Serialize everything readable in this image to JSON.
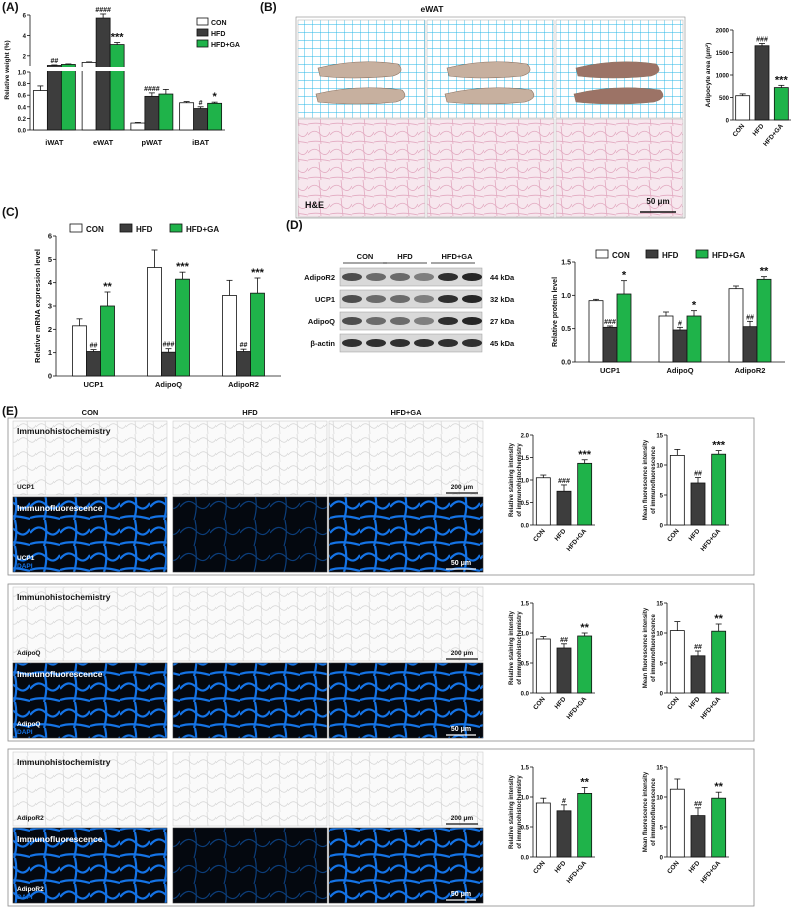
{
  "colors": {
    "con": "#ffffff",
    "hfd": "#3d3d3d",
    "ga": "#1fb34a",
    "grid": "#24b6e6",
    "he": "#f7e7ee",
    "ifbg": "#04080f",
    "ifblue": "#1473e6"
  },
  "panels": {
    "A": "(A)",
    "B": "(B)",
    "C": "(C)",
    "D": "(D)",
    "E": "(E)"
  },
  "groups": [
    "CON",
    "HFD",
    "HFD+GA"
  ],
  "legend": [
    "CON",
    "HFD",
    "HFD+GA"
  ],
  "eWAT_title": "eWAT",
  "he_label": "H&E",
  "scale_50": "50 μm",
  "scale_200": "200 μm",
  "ihc_label": "Immunohistochemistry",
  "if_label": "Immunofluorescence",
  "dapi": "DAPI",
  "markers": [
    "UCP1",
    "AdipoQ",
    "AdipoR2"
  ],
  "wb": {
    "groups": [
      "CON",
      "HFD",
      "HFD+GA"
    ],
    "bands": [
      {
        "name": "AdipoR2",
        "kda": "44 kDa"
      },
      {
        "name": "UCP1",
        "kda": "32 kDa"
      },
      {
        "name": "AdipoQ",
        "kda": "27 kDa"
      },
      {
        "name": "β-actin",
        "kda": "45 kDa"
      }
    ]
  },
  "chart_data": [
    {
      "id": "A",
      "type": "bar",
      "ylabel": "Relative weight (%)",
      "categories": [
        "iWAT",
        "eWAT",
        "pWAT",
        "iBAT"
      ],
      "yticks": [
        "0.0",
        "0.2",
        "0.4",
        "0.6",
        "0.8",
        "1.0",
        "2",
        "4",
        "6"
      ],
      "series": [
        {
          "name": "CON",
          "values": [
            0.68,
            1.35,
            0.12,
            0.47
          ],
          "err": [
            0.08,
            0.05,
            0.01,
            0.02
          ]
        },
        {
          "name": "HFD",
          "values": [
            1.05,
            5.7,
            0.58,
            0.37
          ],
          "err": [
            0.05,
            0.4,
            0.06,
            0.03
          ]
        },
        {
          "name": "HFD+GA",
          "values": [
            1.15,
            3.1,
            0.62,
            0.46
          ],
          "err": [
            0.05,
            0.2,
            0.08,
            0.02
          ]
        }
      ],
      "marks": [
        [
          "",
          "##",
          ""
        ],
        [
          "",
          "####",
          "***"
        ],
        [
          "",
          "####",
          ""
        ],
        [
          "",
          "#",
          "*"
        ]
      ]
    },
    {
      "id": "B",
      "type": "bar",
      "ylabel": "Adipocyte area (μm²)",
      "categories": [
        "CON",
        "HFD",
        "HFD+GA"
      ],
      "yticks": [
        "0",
        "500",
        "1000",
        "1500",
        "2000"
      ],
      "ylim": [
        0,
        2000
      ],
      "values": [
        540,
        1650,
        720
      ],
      "err": [
        40,
        50,
        50
      ],
      "marks": [
        "",
        "###",
        "***"
      ]
    },
    {
      "id": "C",
      "type": "bar",
      "ylabel": "Relative mRNA expression level",
      "categories": [
        "UCP1",
        "AdipoQ",
        "AdipoR2"
      ],
      "yticks": [
        "0",
        "1",
        "2",
        "3",
        "4",
        "5",
        "6"
      ],
      "ylim": [
        0,
        6
      ],
      "series": [
        {
          "name": "CON",
          "values": [
            2.15,
            4.65,
            3.45
          ],
          "err": [
            0.3,
            0.75,
            0.65
          ]
        },
        {
          "name": "HFD",
          "values": [
            1.05,
            1.02,
            1.05
          ],
          "err": [
            0.08,
            0.15,
            0.1
          ]
        },
        {
          "name": "HFD+GA",
          "values": [
            3.0,
            4.15,
            3.55
          ],
          "err": [
            0.6,
            0.3,
            0.65
          ]
        }
      ],
      "marks": [
        [
          "",
          "##",
          "**"
        ],
        [
          "",
          "###",
          "***"
        ],
        [
          "",
          "##",
          "***"
        ]
      ]
    },
    {
      "id": "D",
      "type": "bar",
      "ylabel": "Relative protein level",
      "categories": [
        "UCP1",
        "AdipoQ",
        "AdipoR2"
      ],
      "yticks": [
        "0.0",
        "0.5",
        "1.0",
        "1.5"
      ],
      "ylim": [
        0,
        1.5
      ],
      "series": [
        {
          "name": "CON",
          "values": [
            0.92,
            0.69,
            1.1
          ],
          "err": [
            0.02,
            0.06,
            0.04
          ]
        },
        {
          "name": "HFD",
          "values": [
            0.52,
            0.48,
            0.53
          ],
          "err": [
            0.02,
            0.04,
            0.08
          ]
        },
        {
          "name": "HFD+GA",
          "values": [
            1.02,
            0.69,
            1.24
          ],
          "err": [
            0.2,
            0.08,
            0.04
          ]
        }
      ],
      "marks": [
        [
          "",
          "###",
          "*"
        ],
        [
          "",
          "#",
          "*"
        ],
        [
          "",
          "##",
          "**"
        ]
      ]
    },
    {
      "id": "E1a",
      "type": "bar",
      "ylabel": [
        "Relative staining intensity",
        "of immunohistochemistry"
      ],
      "categories": [
        "CON",
        "HFD",
        "HFD+GA"
      ],
      "yticks": [
        "0.0",
        "0.5",
        "1.0",
        "1.5",
        "2.0"
      ],
      "ylim": [
        0,
        2
      ],
      "values": [
        1.05,
        0.75,
        1.37
      ],
      "err": [
        0.06,
        0.14,
        0.08
      ],
      "marks": [
        "",
        "###",
        "***"
      ]
    },
    {
      "id": "E1b",
      "type": "bar",
      "ylabel": [
        "Mean fluorescence intensity",
        "of immunofluorescence"
      ],
      "categories": [
        "CON",
        "HFD",
        "HFD+GA"
      ],
      "yticks": [
        "0",
        "5",
        "10",
        "15"
      ],
      "ylim": [
        0,
        15
      ],
      "values": [
        11.6,
        7.0,
        11.8
      ],
      "err": [
        1.0,
        0.9,
        0.6
      ],
      "marks": [
        "",
        "##",
        "***"
      ]
    },
    {
      "id": "E2a",
      "type": "bar",
      "ylabel": [
        "Relative staining intensity",
        "of immunohistochemistry"
      ],
      "categories": [
        "CON",
        "HFD",
        "HFD+GA"
      ],
      "yticks": [
        "0.0",
        "0.5",
        "1.0",
        "1.5"
      ],
      "ylim": [
        0,
        1.5
      ],
      "values": [
        0.9,
        0.75,
        0.95
      ],
      "err": [
        0.04,
        0.07,
        0.05
      ],
      "marks": [
        "",
        "##",
        "**"
      ]
    },
    {
      "id": "E2b",
      "type": "bar",
      "ylabel": [
        "Mean fluorescence intensity",
        "of immunofluorescence"
      ],
      "categories": [
        "CON",
        "HFD",
        "HFD+GA"
      ],
      "yticks": [
        "0",
        "5",
        "10",
        "15"
      ],
      "ylim": [
        0,
        15
      ],
      "values": [
        10.4,
        6.2,
        10.3
      ],
      "err": [
        1.5,
        0.8,
        1.2
      ],
      "marks": [
        "",
        "##",
        "**"
      ]
    },
    {
      "id": "E3a",
      "type": "bar",
      "ylabel": [
        "Relative staining intensity",
        "of immunohistochemistry"
      ],
      "categories": [
        "CON",
        "HFD",
        "HFD+GA"
      ],
      "yticks": [
        "0.0",
        "0.5",
        "1.0",
        "1.5"
      ],
      "ylim": [
        0,
        1.5
      ],
      "values": [
        0.9,
        0.77,
        1.06
      ],
      "err": [
        0.08,
        0.1,
        0.1
      ],
      "marks": [
        "",
        "#",
        "**"
      ]
    },
    {
      "id": "E3b",
      "type": "bar",
      "ylabel": [
        "Mean fluorescence intensity",
        "of immunofluorescence"
      ],
      "categories": [
        "CON",
        "HFD",
        "HFD+GA"
      ],
      "yticks": [
        "0",
        "5",
        "10",
        "15"
      ],
      "ylim": [
        0,
        15
      ],
      "values": [
        11.3,
        6.9,
        9.8
      ],
      "err": [
        1.7,
        1.3,
        1.0
      ],
      "marks": [
        "",
        "##",
        "**"
      ]
    }
  ]
}
